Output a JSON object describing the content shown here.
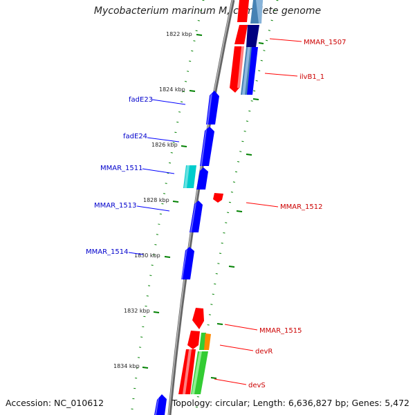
{
  "title": "Mycobacterium marinum M, complete genome",
  "accession": "Accession: NC_010612",
  "topology_info": "Topology: circular; Length: 6,636,827 bp; Genes: 5,472",
  "colors": {
    "backbone": "#808080",
    "forward_gene": "#0000ff",
    "reverse_gene": "#ff0000",
    "rna_gene": "#00cccc",
    "orf_gene": "#33cc33",
    "misc_gene": "#ff8800",
    "steelblue_gene": "#4682b4",
    "navy_gene": "#000080",
    "tick": "#008000"
  },
  "ticks": [
    {
      "label": "1822 kbp"
    },
    {
      "label": "1824 kbp"
    },
    {
      "label": "1826 kbp"
    },
    {
      "label": "1828 kbp"
    },
    {
      "label": "1830 kbp"
    },
    {
      "label": "1832 kbp"
    },
    {
      "label": "1834 kbp"
    }
  ],
  "gene_labels_left": [
    "fadE23",
    "fadE24",
    "MMAR_1511",
    "MMAR_1513",
    "MMAR_1514"
  ],
  "gene_labels_right": [
    "MMAR_1507",
    "ilvB1_1",
    "MMAR_1512",
    "MMAR_1515",
    "devR",
    "devS"
  ]
}
